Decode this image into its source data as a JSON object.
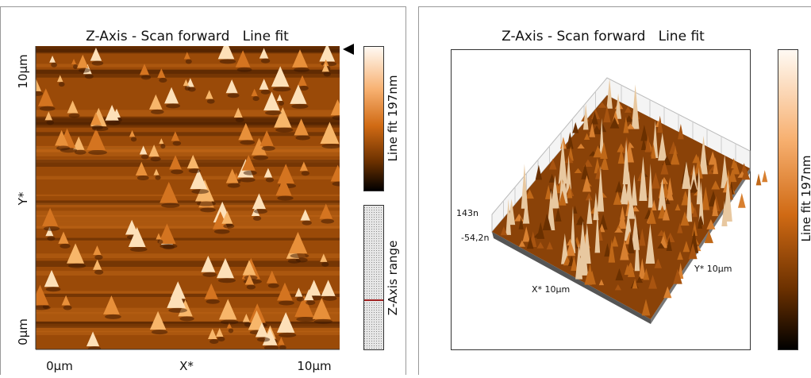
{
  "left_panel": {
    "title": "Z-Axis - Scan forward   Line fit",
    "y_axis": {
      "top": "10µm",
      "label": "Y*",
      "bottom": "0µm"
    },
    "x_axis": {
      "left": "0µm",
      "label": "X*",
      "right": "10µm"
    },
    "colorbar_label": "Line fit 197nm",
    "range_label": "Z-Axis range"
  },
  "right_panel": {
    "title": "Z-Axis - Scan forward   Line fit",
    "z_max": "143n",
    "z_min": "-54,2n",
    "x_label": "X* 10µm",
    "y_label": "Y* 10µm",
    "colorbar_label": "Line fit 197nm"
  }
}
